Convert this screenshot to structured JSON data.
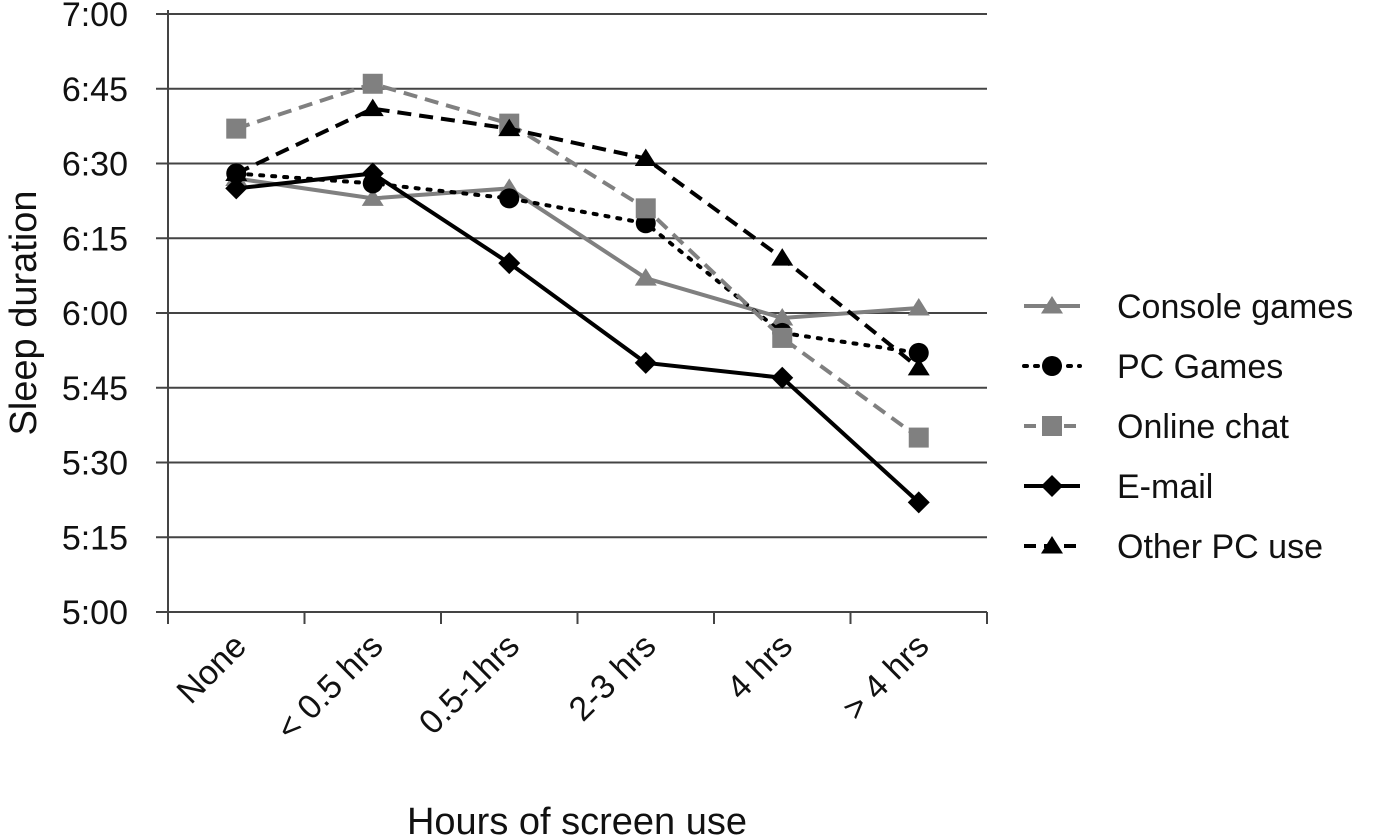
{
  "chart_data": {
    "type": "line",
    "title": "",
    "xlabel": "Hours of screen use",
    "ylabel": "Sleep duration",
    "categories": [
      "None",
      "< 0.5 hrs",
      "0.5-1hrs",
      "2-3 hrs",
      "4 hrs",
      "> 4 hrs"
    ],
    "y_ticks": [
      "5:00",
      "5:15",
      "5:30",
      "5:45",
      "6:00",
      "6:15",
      "6:30",
      "6:45",
      "7:00"
    ],
    "ylim_minutes": [
      300,
      420
    ],
    "grid": true,
    "legend_position": "right",
    "series": [
      {
        "name": "Console games",
        "marker": "triangle",
        "line_style": "solid",
        "color": "#808080",
        "values": [
          "6:27",
          "6:23",
          "6:25",
          "6:07",
          "5:59",
          "6:01"
        ],
        "values_minutes": [
          387,
          383,
          385,
          367,
          359,
          361
        ]
      },
      {
        "name": "PC Games",
        "marker": "circle",
        "line_style": "dotted",
        "color": "#000000",
        "values": [
          "6:28",
          "6:26",
          "6:23",
          "6:18",
          "5:56",
          "5:52"
        ],
        "values_minutes": [
          388,
          386,
          383,
          378,
          356,
          352
        ]
      },
      {
        "name": "Online chat",
        "marker": "square",
        "line_style": "dashed",
        "color": "#808080",
        "values": [
          "6:37",
          "6:46",
          "6:38",
          "6:21",
          "5:55",
          "5:35"
        ],
        "values_minutes": [
          397,
          406,
          398,
          381,
          355,
          335
        ]
      },
      {
        "name": "E-mail",
        "marker": "diamond",
        "line_style": "solid",
        "color": "#000000",
        "values": [
          "6:25",
          "6:28",
          "6:10",
          "5:50",
          "5:47",
          "5:22"
        ],
        "values_minutes": [
          385,
          388,
          370,
          350,
          347,
          322
        ]
      },
      {
        "name": "Other PC use",
        "marker": "triangle",
        "line_style": "dashed",
        "color": "#000000",
        "values": [
          "6:28",
          "6:41",
          "6:37",
          "6:31",
          "6:11",
          "5:49"
        ],
        "values_minutes": [
          388,
          401,
          397,
          391,
          371,
          349
        ]
      }
    ]
  }
}
